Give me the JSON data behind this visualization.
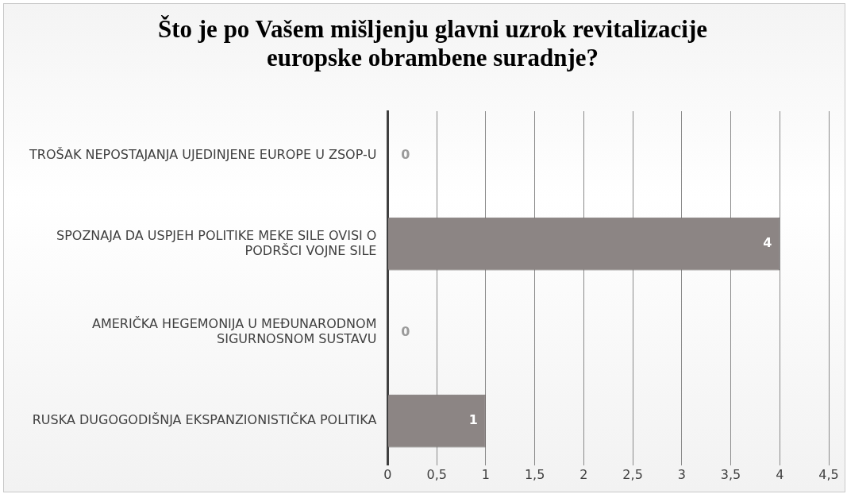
{
  "chart_data": {
    "type": "bar",
    "orientation": "horizontal",
    "title": "Što je po Vašem mišljenju glavni uzrok revitalizacije europske obrambene suradnje?",
    "categories": [
      "TROŠAK NEPOSTAJANJA UJEDINJENE EUROPE U ZSOP-U",
      "SPOZNAJA DA USPJEH POLITIKE MEKE SILE OVISI O PODRŠCI VOJNE SILE",
      "AMERIČKA HEGEMONIJA U MEĐUNARODNOM SIGURNOSNOM SUSTAVU",
      "RUSKA DUGOGODIŠNJA EKSPANZIONISTIČKA POLITIKA"
    ],
    "values": [
      0,
      4,
      0,
      1
    ],
    "color": "#8c8584",
    "xlim": [
      0,
      4.5
    ],
    "xticks": [
      0,
      {
        "value": 0.5,
        "label": "0,5"
      },
      1,
      {
        "value": 1.5,
        "label": "1,5"
      },
      2,
      {
        "value": 2.5,
        "label": "2,5"
      },
      3,
      {
        "value": 3.5,
        "label": "3,5"
      },
      4,
      {
        "value": 4.5,
        "label": "4,5"
      }
    ],
    "grid": "x",
    "data_labels": true,
    "legend": false
  }
}
